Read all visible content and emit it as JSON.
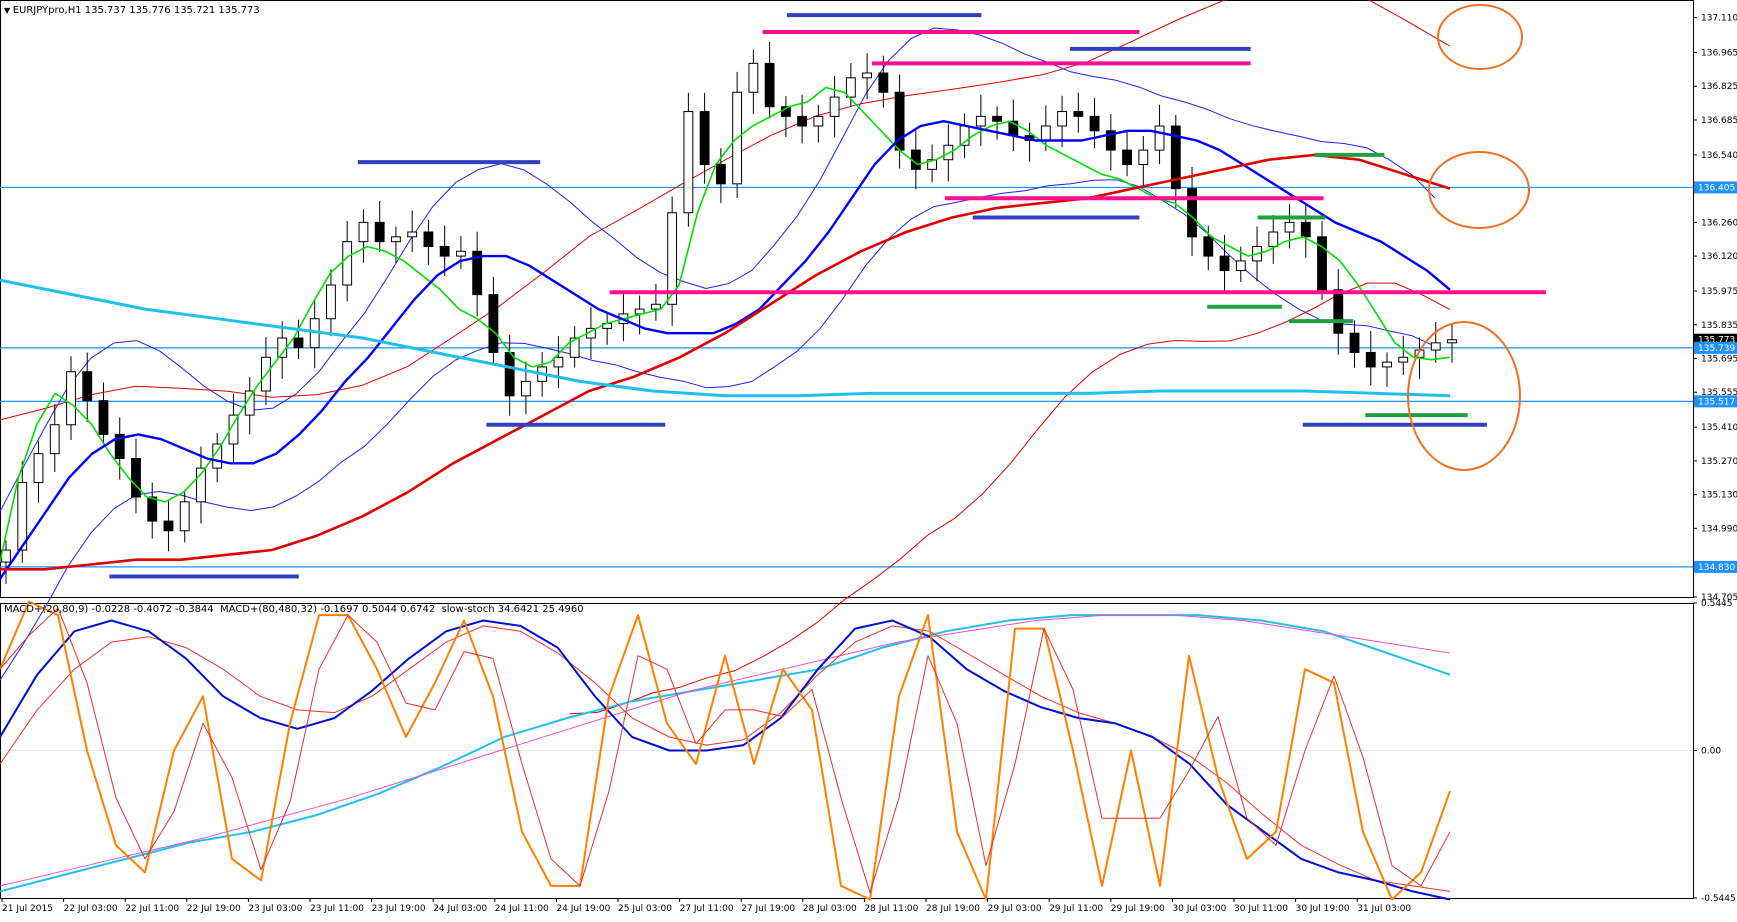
{
  "header": {
    "symbol": "EURJPYpro,H1",
    "ohlc": "135.737 135.776 135.721 135.773"
  },
  "indicator_header": {
    "macd1": "MACD+(20,80,9) -0.0228 -0.4072 -0.3844",
    "macd2": "MACD+(80,480,32) -0.1697 0.5044 0.6742",
    "stoch": "slow-stoch 34.6421 25.4960"
  },
  "colors": {
    "background": "#ffffff",
    "candle_bull": "#ffffff",
    "candle_bear": "#000000",
    "ma_fast": "#00e000",
    "ma_mid": "#0000ff",
    "ma_slow": "#e00000",
    "ma_long": "#1ec0f0",
    "bb_upper_lower_blue": "#2020f0",
    "bb_red": "#e00000",
    "hline_cyan": "#1e90ff",
    "zone_blue": "#3040c0",
    "zone_magenta": "#ff1090",
    "zone_green": "#20a040",
    "circle_orange": "#f07020",
    "macd_main": "#0010d0",
    "macd_signal": "#f03030",
    "macd_long": "#20c0f0",
    "macd_long_signal": "#f050c0",
    "stoch_k": "#ff8000",
    "stoch_d": "#e03030"
  },
  "chart_data": {
    "type": "line",
    "ylim": [
      134.705,
      137.183
    ],
    "yticks": [
      "137.110",
      "136.965",
      "136.825",
      "136.685",
      "136.540",
      "136.405",
      "136.260",
      "136.120",
      "135.975",
      "135.835",
      "135.773",
      "135.739",
      "135.695",
      "135.555",
      "135.517",
      "135.410",
      "135.270",
      "135.130",
      "134.990",
      "134.830",
      "134.705"
    ],
    "price_tags": [
      {
        "label": "136.405",
        "value": 136.405,
        "kind": "level"
      },
      {
        "label": "135.773",
        "value": 135.773,
        "kind": "current"
      },
      {
        "label": "135.739",
        "value": 135.739,
        "kind": "level"
      },
      {
        "label": "135.517",
        "value": 135.517,
        "kind": "level"
      },
      {
        "label": "134.830",
        "value": 134.83,
        "kind": "level"
      }
    ],
    "hlines": [
      136.405,
      135.739,
      135.517,
      134.83
    ],
    "xticks": [
      "21 Jul 2015",
      "22 Jul 03:00",
      "22 Jul 11:00",
      "22 Jul 19:00",
      "23 Jul 03:00",
      "23 Jul 11:00",
      "23 Jul 19:00",
      "24 Jul 03:00",
      "24 Jul 11:00",
      "24 Jul 19:00",
      "25 Jul 03:00",
      "27 Jul 11:00",
      "27 Jul 19:00",
      "28 Jul 03:00",
      "28 Jul 11:00",
      "28 Jul 19:00",
      "29 Jul 03:00",
      "29 Jul 11:00",
      "29 Jul 19:00",
      "30 Jul 03:00",
      "30 Jul 11:00",
      "30 Jul 19:00",
      "31 Jul 03:00"
    ],
    "xaxis_note": "hourly bars, 8 bars between labels, 186 bars shown",
    "candles_close": [
      134.9,
      135.18,
      135.3,
      135.42,
      135.64,
      135.52,
      135.38,
      135.28,
      135.12,
      135.02,
      134.98,
      135.1,
      135.24,
      135.34,
      135.46,
      135.56,
      135.7,
      135.78,
      135.74,
      135.86,
      136.0,
      136.18,
      136.26,
      136.18,
      136.2,
      136.22,
      136.16,
      136.12,
      136.14,
      135.96,
      135.72,
      135.54,
      135.6,
      135.66,
      135.7,
      135.78,
      135.82,
      135.84,
      135.88,
      135.9,
      135.92,
      136.3,
      136.72,
      136.5,
      136.42,
      136.8,
      136.92,
      136.74,
      136.7,
      136.66,
      136.7,
      136.78,
      136.86,
      136.88,
      136.8,
      136.56,
      136.48,
      136.52,
      136.58,
      136.66,
      136.7,
      136.68,
      136.62,
      136.6,
      136.66,
      136.72,
      136.7,
      136.64,
      136.56,
      136.5,
      136.56,
      136.66,
      136.4,
      136.2,
      136.12,
      136.06,
      136.1,
      136.16,
      136.22,
      136.26,
      136.2,
      135.98,
      135.8,
      135.72,
      135.66,
      135.68,
      135.7,
      135.73,
      135.76,
      135.773
    ],
    "series": [
      {
        "name": "",
        "style": "ma_fast",
        "values": [
          134.85,
          135.2,
          135.42,
          135.55,
          135.5,
          135.42,
          135.3,
          135.2,
          135.12,
          135.1,
          135.14,
          135.22,
          135.33,
          135.46,
          135.58,
          135.68,
          135.78,
          135.92,
          136.05,
          136.12,
          136.16,
          136.14,
          136.1,
          136.04,
          135.98,
          135.9,
          135.86,
          135.8,
          135.7,
          135.66,
          135.68,
          135.76,
          135.8,
          135.84,
          135.86,
          135.88,
          135.9,
          136.0,
          136.3,
          136.5,
          136.6,
          136.66,
          136.7,
          136.74,
          136.76,
          136.82,
          136.8,
          136.72,
          136.64,
          136.56,
          136.5,
          136.52,
          136.56,
          136.62,
          136.66,
          136.68,
          136.64,
          136.58,
          136.54,
          136.5,
          136.46,
          136.44,
          136.4,
          136.36,
          136.34,
          136.28,
          136.2,
          136.16,
          136.12,
          136.14,
          136.18,
          136.2,
          136.16,
          136.1,
          136.0,
          135.88,
          135.76,
          135.7,
          135.69,
          135.7
        ]
      },
      {
        "name": "",
        "style": "ma_mid",
        "values": [
          134.78,
          134.92,
          135.06,
          135.2,
          135.3,
          135.36,
          135.38,
          135.36,
          135.32,
          135.28,
          135.26,
          135.26,
          135.3,
          135.38,
          135.48,
          135.6,
          135.7,
          135.82,
          135.94,
          136.04,
          136.1,
          136.12,
          136.12,
          136.08,
          136.02,
          135.96,
          135.9,
          135.86,
          135.82,
          135.8,
          135.8,
          135.8,
          135.84,
          135.9,
          136.0,
          136.1,
          136.22,
          136.36,
          136.5,
          136.6,
          136.66,
          136.68,
          136.66,
          136.64,
          136.62,
          136.6,
          136.6,
          136.6,
          136.62,
          136.64,
          136.64,
          136.62,
          136.6,
          136.56,
          136.5,
          136.44,
          136.38,
          136.32,
          136.26,
          136.22,
          136.18,
          136.12,
          136.06,
          135.98
        ]
      },
      {
        "name": "",
        "style": "ma_slow",
        "values": [
          134.82,
          134.82,
          134.84,
          134.86,
          134.86,
          134.88,
          134.9,
          134.96,
          135.04,
          135.14,
          135.26,
          135.36,
          135.46,
          135.56,
          135.62,
          135.7,
          135.8,
          135.92,
          136.04,
          136.14,
          136.22,
          136.28,
          136.32,
          136.34,
          136.36,
          136.4,
          136.44,
          136.48,
          136.52,
          136.54,
          136.52,
          136.46,
          136.4
        ]
      },
      {
        "name": "",
        "style": "ma_long",
        "values": [
          136.02,
          135.96,
          135.9,
          135.86,
          135.82,
          135.78,
          135.72,
          135.66,
          135.6,
          135.56,
          135.54,
          135.54,
          135.55,
          135.55,
          135.55,
          135.55,
          135.56,
          135.56,
          135.56,
          135.55,
          135.54
        ]
      }
    ],
    "zones": [
      {
        "color": "zone_blue",
        "price": 137.12,
        "x1": 0.453,
        "x2": 0.565
      },
      {
        "color": "zone_magenta",
        "price": 137.05,
        "x1": 0.439,
        "x2": 0.656
      },
      {
        "color": "zone_blue",
        "price": 136.98,
        "x1": 0.616,
        "x2": 0.72
      },
      {
        "color": "zone_magenta",
        "price": 136.92,
        "x1": 0.502,
        "x2": 0.72
      },
      {
        "color": "zone_blue",
        "price": 136.51,
        "x1": 0.206,
        "x2": 0.311
      },
      {
        "color": "zone_magenta",
        "price": 136.36,
        "x1": 0.544,
        "x2": 0.762
      },
      {
        "color": "zone_blue",
        "price": 136.28,
        "x1": 0.56,
        "x2": 0.656
      },
      {
        "color": "zone_green",
        "price": 136.28,
        "x1": 0.724,
        "x2": 0.763
      },
      {
        "color": "zone_green",
        "price": 136.54,
        "x1": 0.757,
        "x2": 0.797
      },
      {
        "color": "zone_magenta",
        "price": 135.97,
        "x1": 0.351,
        "x2": 0.89
      },
      {
        "color": "zone_green",
        "price": 135.91,
        "x1": 0.695,
        "x2": 0.738
      },
      {
        "color": "zone_green",
        "price": 135.85,
        "x1": 0.742,
        "x2": 0.779
      },
      {
        "color": "zone_blue",
        "price": 135.42,
        "x1": 0.28,
        "x2": 0.383
      },
      {
        "color": "zone_green",
        "price": 135.46,
        "x1": 0.786,
        "x2": 0.845
      },
      {
        "color": "zone_blue",
        "price": 135.42,
        "x1": 0.75,
        "x2": 0.856
      },
      {
        "color": "zone_blue",
        "price": 134.79,
        "x1": 0.063,
        "x2": 0.172
      }
    ],
    "macd_panel": {
      "ylim": [
        -0.5445,
        0.5445
      ],
      "yticks": [
        "0.5445",
        "0.00",
        "-0.5445"
      ],
      "macd_main": [
        0.05,
        0.28,
        0.44,
        0.48,
        0.44,
        0.34,
        0.2,
        0.12,
        0.08,
        0.12,
        0.22,
        0.34,
        0.44,
        0.48,
        0.46,
        0.38,
        0.2,
        0.05,
        0.0,
        0.0,
        0.02,
        0.12,
        0.3,
        0.45,
        0.48,
        0.42,
        0.3,
        0.22,
        0.16,
        0.12,
        0.1,
        0.05,
        -0.05,
        -0.2,
        -0.3,
        -0.4,
        -0.45,
        -0.48,
        -0.52,
        -0.55
      ],
      "macd_signal": [
        -0.05,
        0.15,
        0.3,
        0.4,
        0.42,
        0.38,
        0.3,
        0.2,
        0.15,
        0.14,
        0.2,
        0.3,
        0.4,
        0.46,
        0.44,
        0.36,
        0.25,
        0.12,
        0.05,
        0.02,
        0.04,
        0.14,
        0.28,
        0.4,
        0.46,
        0.44,
        0.36,
        0.28,
        0.2,
        0.14,
        0.1,
        0.05,
        -0.02,
        -0.12,
        -0.24,
        -0.35,
        -0.42,
        -0.48,
        -0.5,
        -0.52
      ],
      "macd_long": [
        -0.52,
        -0.46,
        -0.4,
        -0.34,
        -0.3,
        -0.24,
        -0.16,
        -0.06,
        0.05,
        0.12,
        0.18,
        0.22,
        0.26,
        0.3,
        0.38,
        0.44,
        0.48,
        0.5,
        0.5,
        0.5,
        0.48,
        0.44,
        0.36,
        0.28
      ],
      "macd_long_signal": [
        -0.5,
        -0.44,
        -0.38,
        -0.32,
        -0.25,
        -0.18,
        -0.1,
        -0.02,
        0.06,
        0.14,
        0.22,
        0.28,
        0.34,
        0.4,
        0.44,
        0.48,
        0.5,
        0.5,
        0.48,
        0.44,
        0.4,
        0.36
      ],
      "stoch_k": [
        0.3,
        0.55,
        0.5,
        0.0,
        -0.35,
        -0.45,
        0.0,
        0.2,
        -0.4,
        -0.48,
        0.1,
        0.5,
        0.5,
        0.3,
        0.05,
        0.25,
        0.48,
        0.2,
        -0.3,
        -0.5,
        -0.5,
        0.2,
        0.5,
        0.1,
        -0.05,
        0.35,
        -0.05,
        0.3,
        0.15,
        -0.5,
        -0.55,
        0.2,
        0.5,
        -0.3,
        -0.55,
        0.45,
        0.45,
        0.0,
        -0.5,
        0.0,
        -0.5,
        0.35,
        -0.1,
        -0.4,
        -0.3,
        0.3,
        0.25,
        -0.3,
        -0.55,
        -0.45,
        -0.15
      ]
    }
  }
}
